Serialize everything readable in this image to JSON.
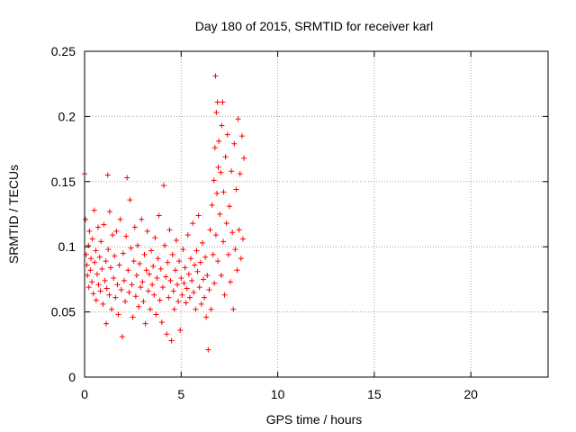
{
  "chart_data": {
    "type": "scatter",
    "title": "Day 180 of 2015, SRMTID for receiver karl",
    "xlabel": "GPS time / hours",
    "ylabel": "SRMTID / TECUs",
    "xlim": [
      0,
      24
    ],
    "ylim": [
      0,
      0.25
    ],
    "x_ticks": [
      0,
      5,
      10,
      15,
      20
    ],
    "x_tick_labels": [
      "0",
      "5",
      "10",
      "15",
      "20"
    ],
    "y_ticks": [
      0,
      0.05,
      0.1,
      0.15,
      0.2,
      0.25
    ],
    "y_tick_labels": [
      "0",
      "0.05",
      "0.1",
      "0.15",
      "0.2",
      "0.25"
    ],
    "grid": true,
    "marker": "+",
    "colors": {
      "series": "#ff0000",
      "grid": "#a0a0a0",
      "axis": "#000000"
    },
    "series": [
      {
        "points": [
          [
            0.0,
            0.156
          ],
          [
            0.05,
            0.121
          ],
          [
            0.08,
            0.094
          ],
          [
            0.12,
            0.086
          ],
          [
            0.15,
            0.078
          ],
          [
            0.2,
            0.101
          ],
          [
            0.22,
            0.069
          ],
          [
            0.25,
            0.112
          ],
          [
            0.3,
            0.082
          ],
          [
            0.33,
            0.091
          ],
          [
            0.38,
            0.073
          ],
          [
            0.4,
            0.106
          ],
          [
            0.45,
            0.064
          ],
          [
            0.5,
            0.128
          ],
          [
            0.52,
            0.088
          ],
          [
            0.58,
            0.097
          ],
          [
            0.6,
            0.059
          ],
          [
            0.65,
            0.079
          ],
          [
            0.7,
            0.115
          ],
          [
            0.72,
            0.071
          ],
          [
            0.78,
            0.092
          ],
          [
            0.82,
            0.066
          ],
          [
            0.85,
            0.104
          ],
          [
            0.9,
            0.083
          ],
          [
            0.95,
            0.056
          ],
          [
            1.0,
            0.117
          ],
          [
            1.05,
            0.074
          ],
          [
            1.1,
            0.089
          ],
          [
            1.12,
            0.041
          ],
          [
            1.15,
            0.068
          ],
          [
            1.2,
            0.155
          ],
          [
            1.22,
            0.098
          ],
          [
            1.28,
            0.063
          ],
          [
            1.3,
            0.127
          ],
          [
            1.35,
            0.084
          ],
          [
            1.4,
            0.052
          ],
          [
            1.45,
            0.109
          ],
          [
            1.5,
            0.076
          ],
          [
            1.55,
            0.093
          ],
          [
            1.6,
            0.061
          ],
          [
            1.65,
            0.112
          ],
          [
            1.7,
            0.071
          ],
          [
            1.75,
            0.048
          ],
          [
            1.8,
            0.086
          ],
          [
            1.85,
            0.121
          ],
          [
            1.9,
            0.067
          ],
          [
            1.95,
            0.031
          ],
          [
            2.0,
            0.095
          ],
          [
            2.05,
            0.074
          ],
          [
            2.1,
            0.058
          ],
          [
            2.15,
            0.108
          ],
          [
            2.2,
            0.153
          ],
          [
            2.25,
            0.082
          ],
          [
            2.3,
            0.065
          ],
          [
            2.35,
            0.136
          ],
          [
            2.4,
            0.099
          ],
          [
            2.45,
            0.071
          ],
          [
            2.5,
            0.046
          ],
          [
            2.55,
            0.089
          ],
          [
            2.6,
            0.115
          ],
          [
            2.65,
            0.062
          ],
          [
            2.7,
            0.078
          ],
          [
            2.75,
            0.101
          ],
          [
            2.8,
            0.054
          ],
          [
            2.85,
            0.087
          ],
          [
            2.9,
            0.069
          ],
          [
            2.95,
            0.121
          ],
          [
            3.0,
            0.073
          ],
          [
            3.05,
            0.058
          ],
          [
            3.1,
            0.094
          ],
          [
            3.15,
            0.041
          ],
          [
            3.2,
            0.082
          ],
          [
            3.25,
            0.112
          ],
          [
            3.3,
            0.066
          ],
          [
            3.35,
            0.079
          ],
          [
            3.4,
            0.052
          ],
          [
            3.45,
            0.097
          ],
          [
            3.5,
            0.071
          ],
          [
            3.55,
            0.085
          ],
          [
            3.6,
            0.063
          ],
          [
            3.65,
            0.107
          ],
          [
            3.7,
            0.048
          ],
          [
            3.75,
            0.076
          ],
          [
            3.8,
            0.091
          ],
          [
            3.85,
            0.124
          ],
          [
            3.9,
            0.059
          ],
          [
            3.95,
            0.083
          ],
          [
            4.0,
            0.042
          ],
          [
            4.05,
            0.069
          ],
          [
            4.1,
            0.147
          ],
          [
            4.15,
            0.101
          ],
          [
            4.2,
            0.077
          ],
          [
            4.25,
            0.033
          ],
          [
            4.3,
            0.088
          ],
          [
            4.35,
            0.061
          ],
          [
            4.4,
            0.113
          ],
          [
            4.45,
            0.074
          ],
          [
            4.5,
            0.028
          ],
          [
            4.55,
            0.094
          ],
          [
            4.6,
            0.066
          ],
          [
            4.65,
            0.052
          ],
          [
            4.7,
            0.082
          ],
          [
            4.75,
            0.105
          ],
          [
            4.8,
            0.071
          ],
          [
            4.85,
            0.058
          ],
          [
            4.9,
            0.089
          ],
          [
            4.95,
            0.036
          ],
          [
            5.0,
            0.076
          ],
          [
            5.05,
            0.063
          ],
          [
            5.1,
            0.098
          ],
          [
            5.15,
            0.072
          ],
          [
            5.2,
            0.084
          ],
          [
            5.25,
            0.057
          ],
          [
            5.3,
            0.068
          ],
          [
            5.35,
            0.109
          ],
          [
            5.4,
            0.079
          ],
          [
            5.45,
            0.061
          ],
          [
            5.5,
            0.091
          ],
          [
            5.55,
            0.074
          ],
          [
            5.6,
            0.118
          ],
          [
            5.65,
            0.065
          ],
          [
            5.7,
            0.086
          ],
          [
            5.75,
            0.052
          ],
          [
            5.8,
            0.097
          ],
          [
            5.85,
            0.081
          ],
          [
            5.9,
            0.124
          ],
          [
            5.95,
            0.069
          ],
          [
            6.0,
            0.088
          ],
          [
            6.05,
            0.056
          ],
          [
            6.1,
            0.103
          ],
          [
            6.15,
            0.075
          ],
          [
            6.2,
            0.061
          ],
          [
            6.25,
            0.092
          ],
          [
            6.3,
            0.046
          ],
          [
            6.35,
            0.078
          ],
          [
            6.4,
            0.021
          ],
          [
            6.45,
            0.067
          ],
          [
            6.5,
            0.113
          ],
          [
            6.55,
            0.052
          ],
          [
            6.6,
            0.132
          ],
          [
            6.65,
            0.094
          ],
          [
            6.7,
            0.151
          ],
          [
            6.72,
            0.072
          ],
          [
            6.75,
            0.176
          ],
          [
            6.78,
            0.231
          ],
          [
            6.8,
            0.109
          ],
          [
            6.82,
            0.203
          ],
          [
            6.85,
            0.141
          ],
          [
            6.88,
            0.211
          ],
          [
            6.9,
            0.089
          ],
          [
            6.92,
            0.161
          ],
          [
            6.95,
            0.181
          ],
          [
            7.0,
            0.125
          ],
          [
            7.05,
            0.157
          ],
          [
            7.08,
            0.078
          ],
          [
            7.1,
            0.193
          ],
          [
            7.15,
            0.211
          ],
          [
            7.18,
            0.104
          ],
          [
            7.2,
            0.142
          ],
          [
            7.25,
            0.063
          ],
          [
            7.3,
            0.169
          ],
          [
            7.35,
            0.118
          ],
          [
            7.4,
            0.186
          ],
          [
            7.45,
            0.094
          ],
          [
            7.5,
            0.131
          ],
          [
            7.55,
            0.073
          ],
          [
            7.6,
            0.158
          ],
          [
            7.65,
            0.111
          ],
          [
            7.7,
            0.052
          ],
          [
            7.75,
            0.179
          ],
          [
            7.8,
            0.098
          ],
          [
            7.85,
            0.144
          ],
          [
            7.9,
            0.082
          ],
          [
            7.95,
            0.198
          ],
          [
            8.0,
            0.113
          ],
          [
            8.05,
            0.156
          ],
          [
            8.1,
            0.091
          ],
          [
            8.15,
            0.185
          ],
          [
            8.2,
            0.106
          ],
          [
            8.25,
            0.168
          ]
        ]
      }
    ]
  }
}
